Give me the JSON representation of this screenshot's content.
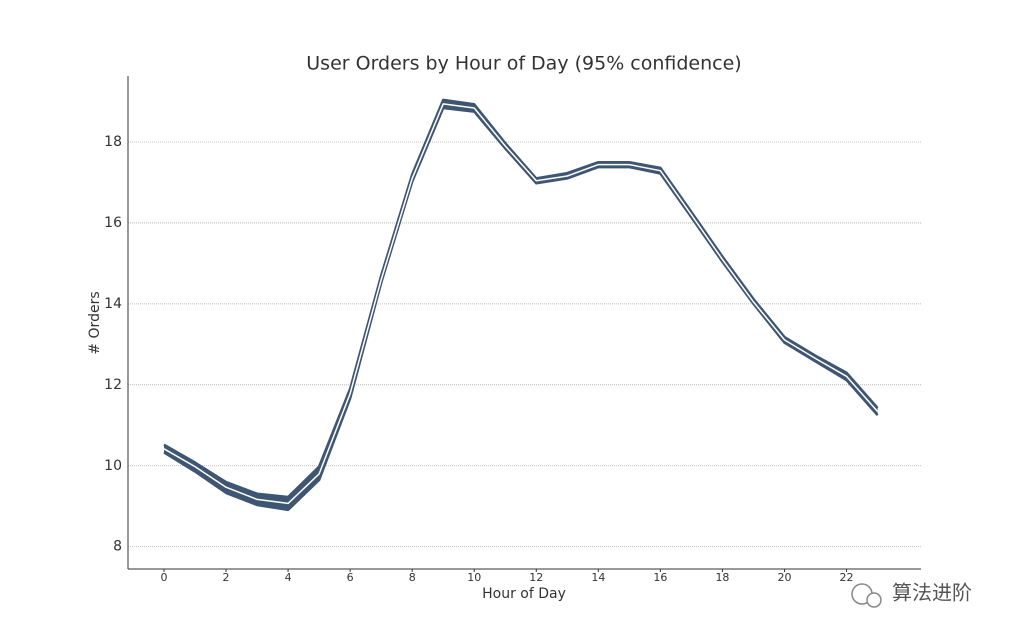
{
  "chart_data": {
    "type": "line",
    "title": "User Orders by Hour of Day (95% confidence)",
    "x_label": "Hour of Day",
    "y_label": "# Orders",
    "x": [
      0,
      1,
      2,
      3,
      4,
      5,
      6,
      7,
      8,
      9,
      10,
      11,
      12,
      13,
      14,
      15,
      16,
      17,
      18,
      19,
      20,
      21,
      22,
      23
    ],
    "values": [
      10.42,
      9.98,
      9.47,
      9.17,
      9.07,
      9.8,
      11.78,
      14.6,
      17.1,
      18.94,
      18.84,
      17.9,
      17.04,
      17.16,
      17.44,
      17.44,
      17.29,
      16.2,
      15.1,
      14.05,
      13.11,
      12.65,
      12.21,
      11.34
    ],
    "lower": [
      10.33,
      9.86,
      9.33,
      9.03,
      8.91,
      9.65,
      11.66,
      14.52,
      17.02,
      18.84,
      18.75,
      17.84,
      16.98,
      17.1,
      17.38,
      17.38,
      17.22,
      16.14,
      15.04,
      14.0,
      13.04,
      12.58,
      12.12,
      11.25
    ],
    "upper": [
      10.52,
      10.08,
      9.6,
      9.31,
      9.23,
      9.98,
      11.9,
      14.7,
      17.2,
      19.04,
      18.93,
      17.97,
      17.1,
      17.23,
      17.5,
      17.5,
      17.36,
      16.27,
      15.17,
      14.12,
      13.18,
      12.72,
      12.3,
      11.43
    ],
    "color": "#3f5672",
    "line_color": "#ffffff",
    "xlim": [
      -1.16,
      24.4
    ],
    "ylim": [
      7.45,
      19.63
    ],
    "xticks": [
      0,
      2,
      4,
      6,
      8,
      10,
      12,
      14,
      16,
      18,
      20,
      22
    ],
    "yticks": [
      8,
      10,
      12,
      14,
      16,
      18
    ],
    "grid": true,
    "watermark": "算法进阶"
  }
}
